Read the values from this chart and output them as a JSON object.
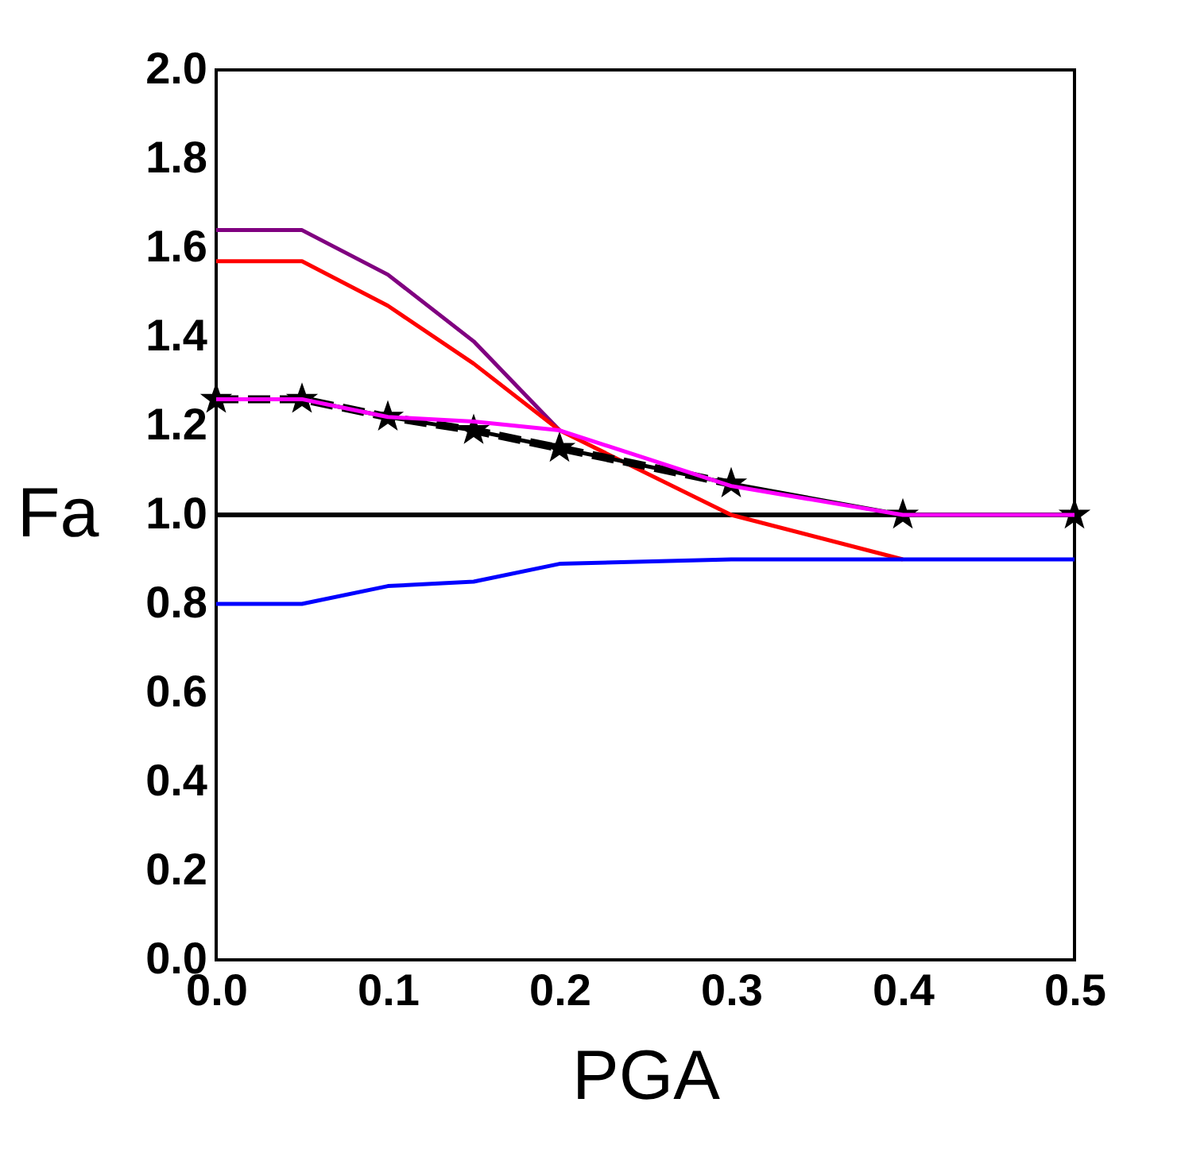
{
  "chart_data": {
    "type": "line",
    "xlabel": "PGA",
    "ylabel": "Fa",
    "x": [
      0,
      0.05,
      0.1,
      0.15,
      0.2,
      0.3,
      0.4,
      0.5
    ],
    "xlim": [
      0,
      0.5
    ],
    "xticks": [
      {
        "value": 0,
        "label": "0.0"
      },
      0.1,
      0.2,
      0.3,
      0.4,
      0.5
    ],
    "ylim": [
      0,
      2
    ],
    "yticks": [
      {
        "value": 0,
        "label": "0.0"
      },
      0.2,
      0.4,
      0.6,
      0.8,
      {
        "value": 1,
        "label": "1.0"
      },
      1.2,
      1.4,
      1.6,
      1.8,
      {
        "value": 2,
        "label": "2.0"
      }
    ],
    "grid": false,
    "ref_lines": [
      {
        "axis": "y",
        "value": 1,
        "color": "#000000"
      }
    ],
    "series": [
      {
        "color": "#800080",
        "values": [
          1.64,
          1.64,
          1.54,
          1.39,
          1.19,
          null,
          null,
          null
        ]
      },
      {
        "color": "#ff0000",
        "values": [
          1.57,
          1.57,
          1.47,
          1.34,
          1.19,
          1.0,
          0.9,
          null
        ]
      },
      {
        "color": "#0000ff",
        "values": [
          0.8,
          0.8,
          0.84,
          0.85,
          0.89,
          0.9,
          0.9,
          0.9
        ]
      },
      {
        "color": "#000000",
        "marker": "star",
        "values": [
          1.26,
          1.26,
          1.22,
          1.19,
          1.15,
          1.07,
          1.0,
          1.0
        ]
      },
      {
        "color": "#000000",
        "line_style": "dashed",
        "values": [
          1.26,
          1.26,
          1.22,
          1.19,
          1.15,
          1.07,
          null,
          null
        ]
      },
      {
        "color": "#ff00ff",
        "values": [
          1.26,
          1.26,
          1.22,
          1.21,
          1.19,
          1.065,
          1.0,
          1.0
        ]
      }
    ]
  }
}
